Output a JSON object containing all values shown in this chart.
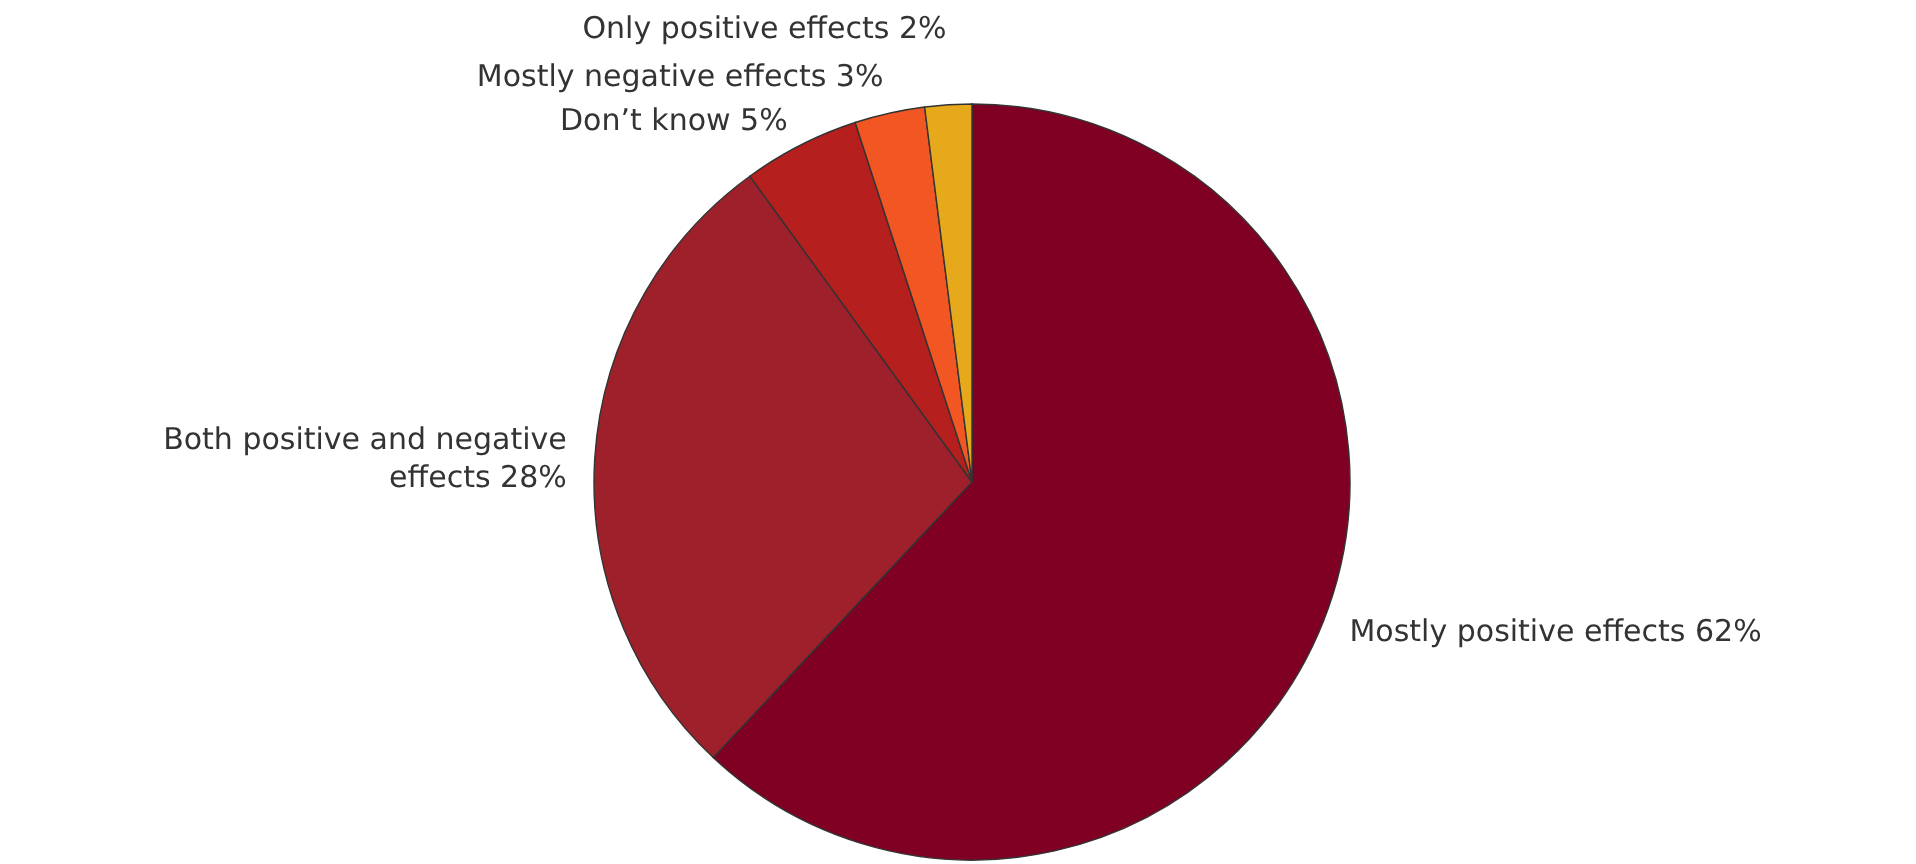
{
  "chart_data": {
    "type": "pie",
    "categories": [
      "Mostly positive effects",
      "Both positive and negative effects",
      "Don’t know",
      "Mostly negative effects",
      "Only positive effects"
    ],
    "values": [
      62,
      28,
      5,
      3,
      2
    ],
    "value_labels": [
      "62%",
      "28%",
      "5%",
      "3%",
      "2%"
    ],
    "colors": [
      "#800024",
      "#9e202b",
      "#b51f1e",
      "#f15623",
      "#e5a91b"
    ]
  }
}
